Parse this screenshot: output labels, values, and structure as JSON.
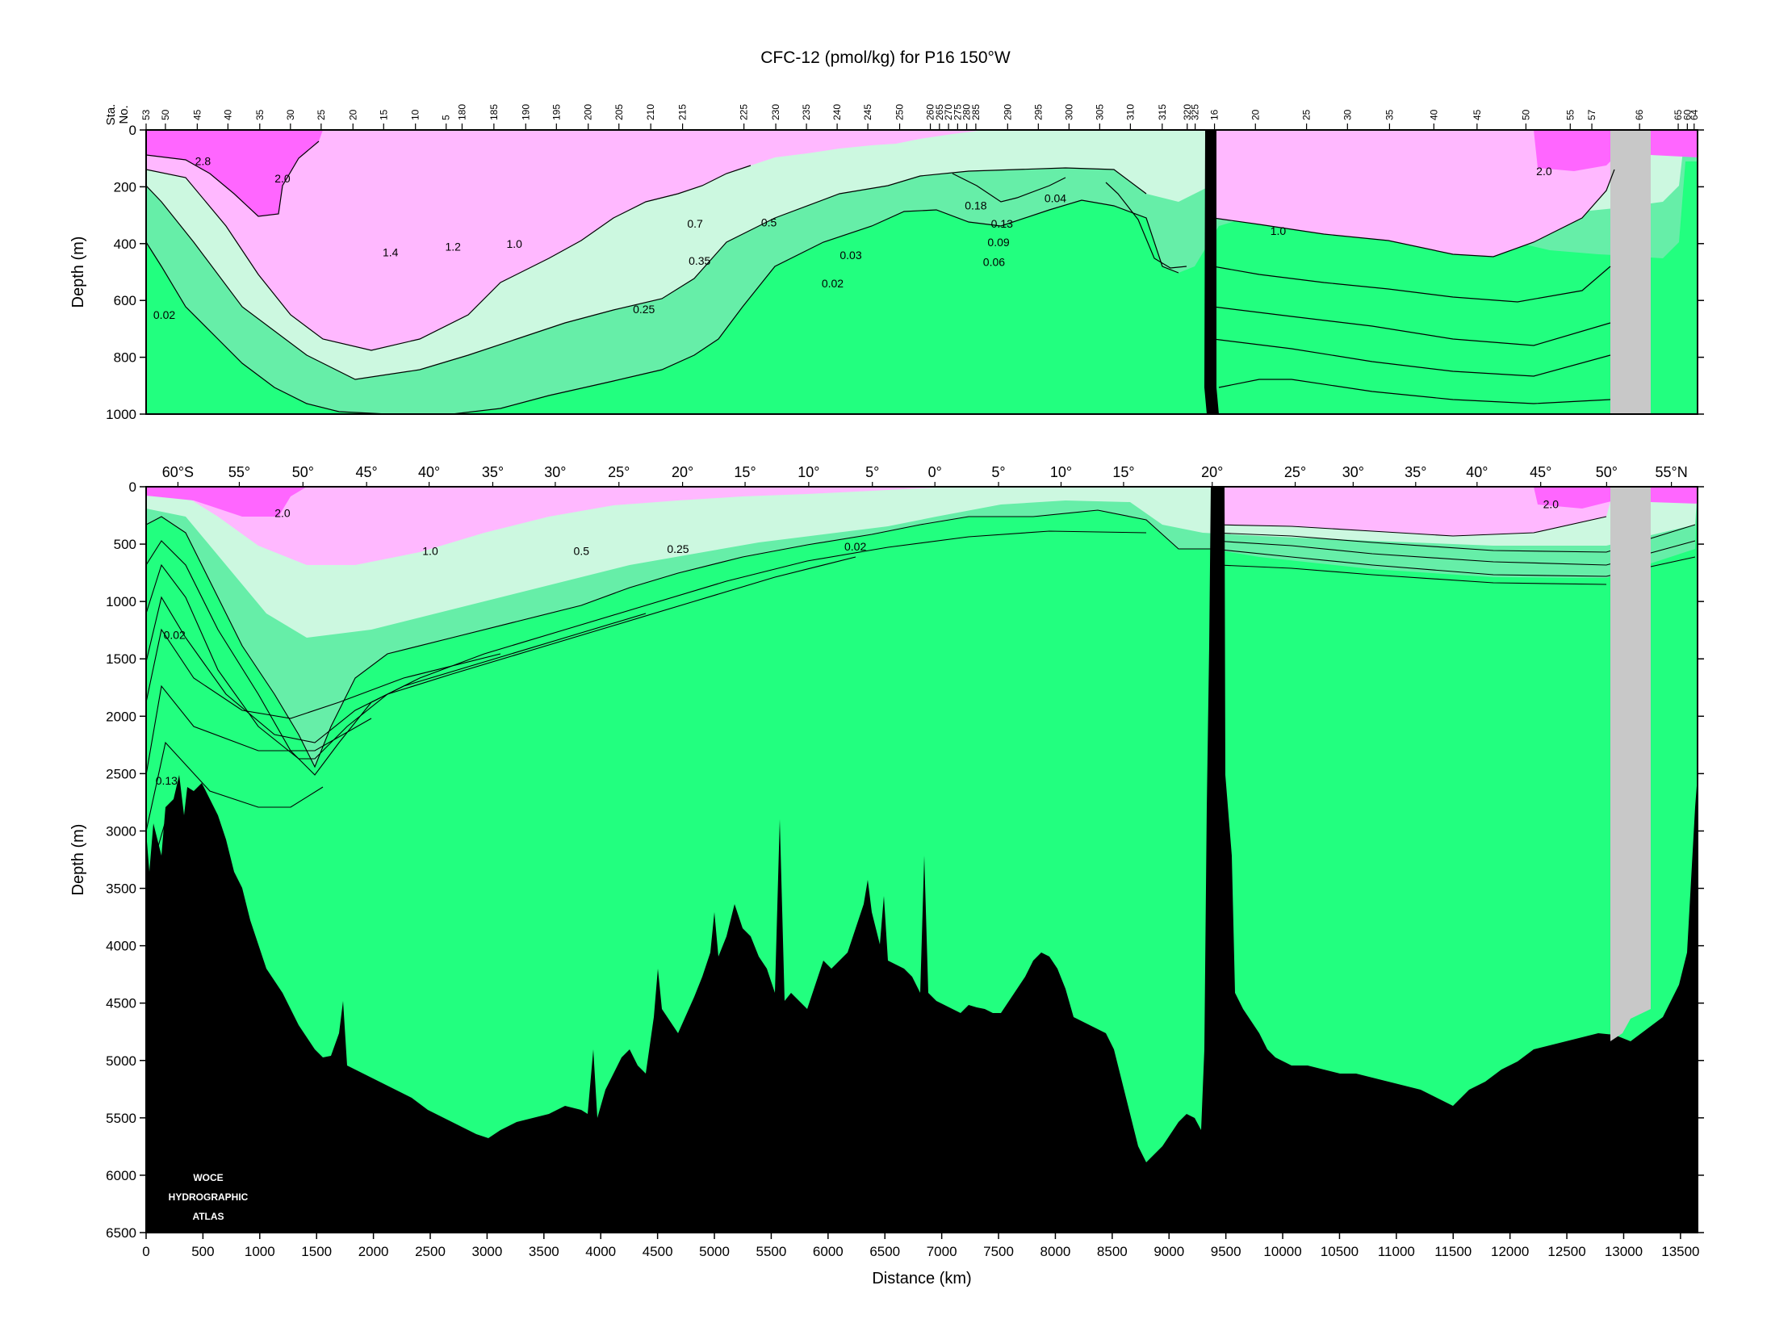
{
  "title": "CFC-12 (pmol/kg) for P16 150°W",
  "logo_text": [
    "WOCE",
    "HYDROGRAPHIC",
    "ATLAS"
  ],
  "colors": {
    "pink_dark": "#ff66ff",
    "pink_light": "#ffb8ff",
    "mint_light": "#ccf8e0",
    "mint_mid": "#99f2c4",
    "mint_mid2": "#66eea8",
    "green_deep": "#22ff7f",
    "bathymetry": "#000000",
    "gap": "#c8c8c8"
  },
  "chart_data": [
    {
      "type": "contour",
      "panel": "upper",
      "title": "CFC-12 (pmol/kg) for P16 150°W",
      "ylabel": "Depth (m)",
      "ylim": [
        1000,
        0
      ],
      "xlim": [
        0,
        13650
      ],
      "yticks": [
        "0",
        "200",
        "400",
        "600",
        "800",
        "1000"
      ],
      "station_label": [
        "Sta.",
        "No."
      ],
      "stations": [
        {
          "label": "53",
          "km": 0
        },
        {
          "label": "50",
          "km": 170
        },
        {
          "label": "45",
          "km": 450
        },
        {
          "label": "40",
          "km": 720
        },
        {
          "label": "35",
          "km": 1000
        },
        {
          "label": "30",
          "km": 1270
        },
        {
          "label": "25",
          "km": 1540
        },
        {
          "label": "20",
          "km": 1820
        },
        {
          "label": "15",
          "km": 2090
        },
        {
          "label": "10",
          "km": 2370
        },
        {
          "label": "5",
          "km": 2640
        },
        {
          "label": "180",
          "km": 2780
        },
        {
          "label": "185",
          "km": 3060
        },
        {
          "label": "190",
          "km": 3340
        },
        {
          "label": "195",
          "km": 3610
        },
        {
          "label": "200",
          "km": 3890
        },
        {
          "label": "205",
          "km": 4160
        },
        {
          "label": "210",
          "km": 4440
        },
        {
          "label": "215",
          "km": 4720
        },
        {
          "label": "225",
          "km": 5260
        },
        {
          "label": "230",
          "km": 5540
        },
        {
          "label": "235",
          "km": 5810
        },
        {
          "label": "240",
          "km": 6080
        },
        {
          "label": "245",
          "km": 6350
        },
        {
          "label": "250",
          "km": 6630
        },
        {
          "label": "260",
          "km": 6900
        },
        {
          "label": "265",
          "km": 6980
        },
        {
          "label": "270",
          "km": 7060
        },
        {
          "label": "275",
          "km": 7140
        },
        {
          "label": "280",
          "km": 7220
        },
        {
          "label": "285",
          "km": 7300
        },
        {
          "label": "290",
          "km": 7580
        },
        {
          "label": "295",
          "km": 7850
        },
        {
          "label": "300",
          "km": 8120
        },
        {
          "label": "305",
          "km": 8390
        },
        {
          "label": "310",
          "km": 8660
        },
        {
          "label": "315",
          "km": 8940
        },
        {
          "label": "320",
          "km": 9160
        },
        {
          "label": "325",
          "km": 9230
        },
        {
          "label": "16",
          "km": 9400
        },
        {
          "label": "20",
          "km": 9760
        },
        {
          "label": "25",
          "km": 10210
        },
        {
          "label": "30",
          "km": 10570
        },
        {
          "label": "35",
          "km": 10940
        },
        {
          "label": "40",
          "km": 11330
        },
        {
          "label": "45",
          "km": 11710
        },
        {
          "label": "50",
          "km": 12140
        },
        {
          "label": "55",
          "km": 12530
        },
        {
          "label": "57",
          "km": 12720
        },
        {
          "label": "66",
          "km": 13140
        },
        {
          "label": "65",
          "km": 13480
        },
        {
          "label": "60",
          "km": 13560
        },
        {
          "label": "64",
          "km": 13620
        }
      ],
      "contour_labels": [
        {
          "text": "2.8",
          "km": 500,
          "depth": 110
        },
        {
          "text": "2.0",
          "km": 1200,
          "depth": 170
        },
        {
          "text": "1.4",
          "km": 2150,
          "depth": 430
        },
        {
          "text": "1.2",
          "km": 2700,
          "depth": 410
        },
        {
          "text": "1.0",
          "km": 3240,
          "depth": 400
        },
        {
          "text": "0.7",
          "km": 4830,
          "depth": 330
        },
        {
          "text": "0.5",
          "km": 5480,
          "depth": 325
        },
        {
          "text": "0.35",
          "km": 4870,
          "depth": 460
        },
        {
          "text": "0.25",
          "km": 4380,
          "depth": 630
        },
        {
          "text": "0.03",
          "km": 6200,
          "depth": 440
        },
        {
          "text": "0.02",
          "km": 6040,
          "depth": 540
        },
        {
          "text": "0.18",
          "km": 7300,
          "depth": 265
        },
        {
          "text": "0.13",
          "km": 7530,
          "depth": 330
        },
        {
          "text": "0.09",
          "km": 7500,
          "depth": 395
        },
        {
          "text": "0.06",
          "km": 7460,
          "depth": 465
        },
        {
          "text": "0.04",
          "km": 8000,
          "depth": 240
        },
        {
          "text": "1.0",
          "km": 9960,
          "depth": 355
        },
        {
          "text": "2.0",
          "km": 12300,
          "depth": 145
        },
        {
          "text": "0.02",
          "km": 160,
          "depth": 650
        }
      ]
    },
    {
      "type": "contour",
      "panel": "lower",
      "xlabel": "Distance (km)",
      "ylabel": "Depth (m)",
      "xlim": [
        0,
        13650
      ],
      "ylim": [
        6500,
        0
      ],
      "xticks": [
        "0",
        "500",
        "1000",
        "1500",
        "2000",
        "2500",
        "3000",
        "3500",
        "4000",
        "4500",
        "5000",
        "5500",
        "6000",
        "6500",
        "7000",
        "7500",
        "8000",
        "8500",
        "9000",
        "9500",
        "10000",
        "10500",
        "11000",
        "11500",
        "12000",
        "12500",
        "13000",
        "13500"
      ],
      "yticks": [
        "0",
        "500",
        "1000",
        "1500",
        "2000",
        "2500",
        "3000",
        "3500",
        "4000",
        "4500",
        "5000",
        "5500",
        "6000",
        "6500"
      ],
      "latitudes": [
        {
          "label": "60°S",
          "km": 280
        },
        {
          "label": "55°",
          "km": 820
        },
        {
          "label": "50°",
          "km": 1380
        },
        {
          "label": "45°",
          "km": 1940
        },
        {
          "label": "40°",
          "km": 2490
        },
        {
          "label": "35°",
          "km": 3050
        },
        {
          "label": "30°",
          "km": 3600
        },
        {
          "label": "25°",
          "km": 4160
        },
        {
          "label": "20°",
          "km": 4720
        },
        {
          "label": "15°",
          "km": 5270
        },
        {
          "label": "10°",
          "km": 5830
        },
        {
          "label": "5°",
          "km": 6390
        },
        {
          "label": "0°",
          "km": 6940
        },
        {
          "label": "5°",
          "km": 7500
        },
        {
          "label": "10°",
          "km": 8050
        },
        {
          "label": "15°",
          "km": 8600
        },
        {
          "label": "20°",
          "km": 9380
        },
        {
          "label": "25°",
          "km": 10110
        },
        {
          "label": "30°",
          "km": 10620
        },
        {
          "label": "35°",
          "km": 11170
        },
        {
          "label": "40°",
          "km": 11710
        },
        {
          "label": "45°",
          "km": 12270
        },
        {
          "label": "50°",
          "km": 12850
        },
        {
          "label": "55°N",
          "km": 13420
        }
      ],
      "contour_labels": [
        {
          "text": "2.0",
          "km": 1200,
          "depth": 230
        },
        {
          "text": "1.0",
          "km": 2500,
          "depth": 560
        },
        {
          "text": "0.5",
          "km": 3830,
          "depth": 560
        },
        {
          "text": "0.25",
          "km": 4680,
          "depth": 540
        },
        {
          "text": "0.02",
          "km": 6240,
          "depth": 520
        },
        {
          "text": "2.0",
          "km": 12360,
          "depth": 150
        },
        {
          "text": "0.02",
          "km": 250,
          "depth": 1290
        },
        {
          "text": "0.13",
          "km": 180,
          "depth": 2560
        }
      ]
    }
  ]
}
